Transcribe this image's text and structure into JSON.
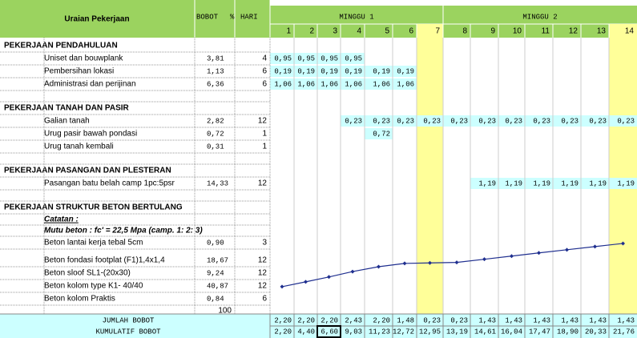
{
  "header": {
    "title": "Uraian Pekerjaan",
    "bobot": "BOBOT",
    "percent": "%",
    "hari": "HARI",
    "weeks": [
      "MINGGU 1",
      "MINGGU 2"
    ],
    "days": [
      1,
      2,
      3,
      4,
      5,
      6,
      7,
      8,
      9,
      10,
      11,
      12,
      13,
      14
    ]
  },
  "sections": [
    {
      "title": "PEKERJAAN PENDAHULUAN",
      "items": [
        {
          "name": "Uniset dan bouwplank",
          "bobot": "3,81",
          "hari": 4,
          "cells": [
            "0,95",
            "0,95",
            "0,95",
            "0,95",
            null,
            null,
            null,
            null,
            null,
            null,
            null,
            null,
            null,
            null
          ]
        },
        {
          "name": "Pembersihan lokasi",
          "bobot": "1,13",
          "hari": 6,
          "cells": [
            "0,19",
            "0,19",
            "0,19",
            "0,19",
            "0,19",
            "0,19",
            null,
            null,
            null,
            null,
            null,
            null,
            null,
            null
          ]
        },
        {
          "name": "Administrasi dan perijinan",
          "bobot": "6,36",
          "hari": 6,
          "cells": [
            "1,06",
            "1,06",
            "1,06",
            "1,06",
            "1,06",
            "1,06",
            null,
            null,
            null,
            null,
            null,
            null,
            null,
            null
          ]
        }
      ]
    },
    {
      "title": "PEKERJAAN TANAH DAN PASIR",
      "items": [
        {
          "name": "Galian tanah",
          "bobot": "2,82",
          "hari": 12,
          "cells": [
            null,
            null,
            null,
            "0,23",
            "0,23",
            "0,23",
            "0,23",
            "0,23",
            "0,23",
            "0,23",
            "0,23",
            "0,23",
            "0,23",
            "0,23"
          ]
        },
        {
          "name": "Urug pasir bawah pondasi",
          "bobot": "0,72",
          "hari": 1,
          "cells": [
            null,
            null,
            null,
            null,
            "0,72",
            null,
            null,
            null,
            null,
            null,
            null,
            null,
            null,
            null
          ]
        },
        {
          "name": "Urug tanah kembali",
          "bobot": "0,31",
          "hari": 1,
          "cells": [
            null,
            null,
            null,
            null,
            null,
            null,
            null,
            null,
            null,
            null,
            null,
            null,
            null,
            null
          ]
        }
      ]
    },
    {
      "title": "PEKERJAAN PASANGAN DAN PLESTERAN",
      "items": [
        {
          "name": "Pasangan batu belah camp 1pc:5psr",
          "bobot": "14,33",
          "hari": 12,
          "cells": [
            null,
            null,
            null,
            null,
            null,
            null,
            null,
            null,
            "1,19",
            "1,19",
            "1,19",
            "1,19",
            "1,19",
            "1,19"
          ]
        }
      ]
    },
    {
      "title": "PEKERJAAN STRUKTUR BETON BERTULANG",
      "notes": [
        "Catatan :",
        "Mutu beton : fc' = 22,5 Mpa  (camp. 1: 2: 3)"
      ],
      "items": [
        {
          "name": "Beton lantai kerja tebal 5cm",
          "bobot": "0,90",
          "hari": 3
        },
        {
          "name": "Beton fondasi footplat (F1)1,4x1,4",
          "bobot": "18,67",
          "hari": 12
        },
        {
          "name": "Beton sloof SL1-(20x30)",
          "bobot": "9,24",
          "hari": 12
        },
        {
          "name": "Beton kolom type K1- 40/40",
          "bobot": "40,87",
          "hari": 12
        },
        {
          "name": "Beton kolom Praktis",
          "bobot": "0,84",
          "hari": 6
        }
      ]
    }
  ],
  "total_bobot": "100",
  "footer": {
    "jumlah_label": "JUMLAH BOBOT",
    "jumlah": [
      "2,20",
      "2,20",
      "2,20",
      "2,43",
      "2,20",
      "1,48",
      "0,23",
      "0,23",
      "1,43",
      "1,43",
      "1,43",
      "1,43",
      "1,43",
      "1,43"
    ],
    "kumulatif_label": "KUMULATIF BOBOT",
    "kumulatif": [
      "2,20",
      "4,40",
      "6,60",
      "9,03",
      "11,23",
      "12,72",
      "12,95",
      "13,19",
      "14,61",
      "16,04",
      "17,47",
      "18,90",
      "20,33",
      "21,76"
    ]
  }
}
